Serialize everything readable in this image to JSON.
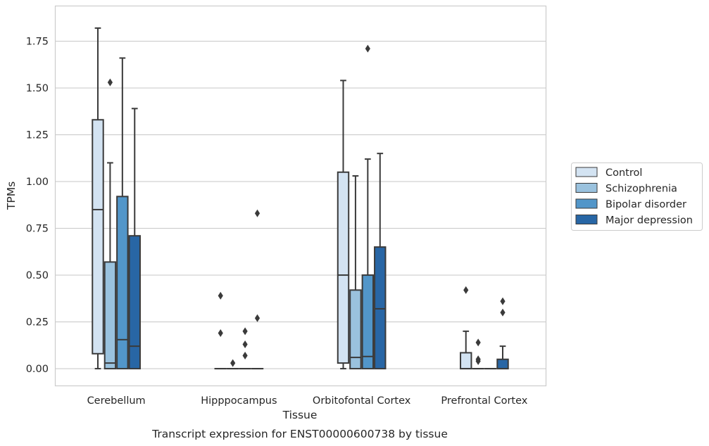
{
  "chart_data": {
    "type": "box",
    "caption": "Transcript expression for ENST00000600738 by tissue",
    "xlabel": "Tissue",
    "ylabel": "TPMs",
    "ylim": [
      -0.09,
      1.94
    ],
    "yticks": [
      "0.00",
      "0.25",
      "0.50",
      "0.75",
      "1.00",
      "1.25",
      "1.50",
      "1.75"
    ],
    "categories": [
      "Cerebellum",
      "Hipppocampus",
      "Orbitofontal Cortex",
      "Prefrontal Cortex"
    ],
    "grid": true,
    "legend_position": "right",
    "series": [
      {
        "name": "Control",
        "color": "#d3e3f2",
        "boxes": [
          {
            "whislo": 0.0,
            "q1": 0.08,
            "med": 0.85,
            "q3": 1.33,
            "whishi": 1.82,
            "fliers": []
          },
          {
            "whislo": 0.0,
            "q1": 0.0,
            "med": 0.0,
            "q3": 0.0,
            "whishi": 0.0,
            "fliers": [
              0.19,
              0.39
            ]
          },
          {
            "whislo": 0.0,
            "q1": 0.03,
            "med": 0.5,
            "q3": 1.05,
            "whishi": 1.54,
            "fliers": []
          },
          {
            "whislo": 0.0,
            "q1": 0.0,
            "med": 0.0,
            "q3": 0.085,
            "whishi": 0.2,
            "fliers": [
              0.42
            ]
          }
        ]
      },
      {
        "name": "Schizophrenia",
        "color": "#9ac2de",
        "boxes": [
          {
            "whislo": 0.0,
            "q1": 0.0,
            "med": 0.03,
            "q3": 0.57,
            "whishi": 1.1,
            "fliers": [
              1.53
            ]
          },
          {
            "whislo": 0.0,
            "q1": 0.0,
            "med": 0.0,
            "q3": 0.0,
            "whishi": 0.0,
            "fliers": [
              0.03
            ]
          },
          {
            "whislo": 0.0,
            "q1": 0.0,
            "med": 0.06,
            "q3": 0.42,
            "whishi": 1.03,
            "fliers": []
          },
          {
            "whislo": 0.0,
            "q1": 0.0,
            "med": 0.0,
            "q3": 0.0,
            "whishi": 0.0,
            "fliers": [
              0.04,
              0.05,
              0.14
            ]
          }
        ]
      },
      {
        "name": "Bipolar disorder",
        "color": "#5296c9",
        "boxes": [
          {
            "whislo": 0.0,
            "q1": 0.0,
            "med": 0.155,
            "q3": 0.92,
            "whishi": 1.66,
            "fliers": []
          },
          {
            "whislo": 0.0,
            "q1": 0.0,
            "med": 0.0,
            "q3": 0.0,
            "whishi": 0.0,
            "fliers": [
              0.07,
              0.13,
              0.2
            ]
          },
          {
            "whislo": 0.0,
            "q1": 0.0,
            "med": 0.065,
            "q3": 0.5,
            "whishi": 1.12,
            "fliers": [
              1.71
            ]
          },
          {
            "whislo": 0.0,
            "q1": 0.0,
            "med": 0.0,
            "q3": 0.0,
            "whishi": 0.0,
            "fliers": []
          }
        ]
      },
      {
        "name": "Major depression",
        "color": "#2866a5",
        "boxes": [
          {
            "whislo": 0.0,
            "q1": 0.0,
            "med": 0.12,
            "q3": 0.71,
            "whishi": 1.39,
            "fliers": []
          },
          {
            "whislo": 0.0,
            "q1": 0.0,
            "med": 0.0,
            "q3": 0.0,
            "whishi": 0.0,
            "fliers": [
              0.27,
              0.83
            ]
          },
          {
            "whislo": 0.0,
            "q1": 0.0,
            "med": 0.32,
            "q3": 0.65,
            "whishi": 1.15,
            "fliers": []
          },
          {
            "whislo": 0.0,
            "q1": 0.0,
            "med": 0.0,
            "q3": 0.05,
            "whishi": 0.12,
            "fliers": [
              0.3,
              0.36
            ]
          }
        ]
      }
    ]
  }
}
